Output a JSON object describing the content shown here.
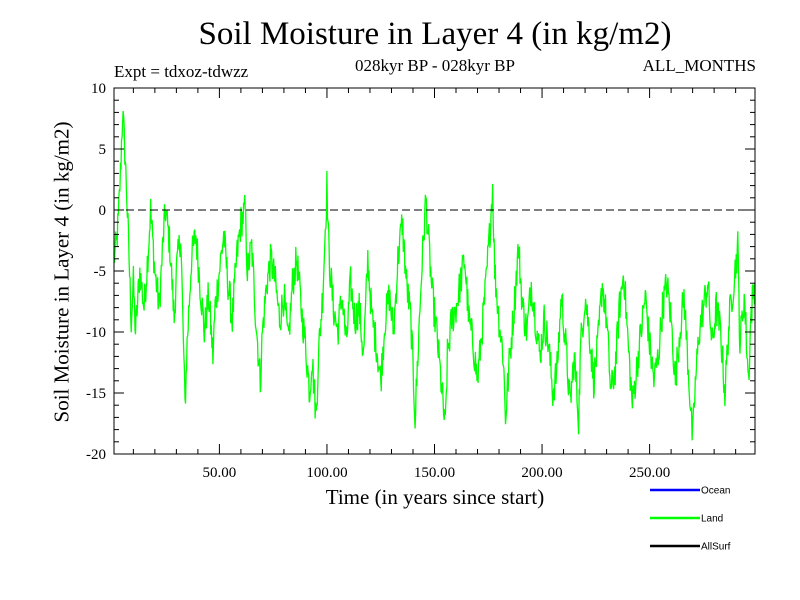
{
  "chart_data": {
    "type": "line",
    "title": "Soil Moisture in Layer 4 (in kg/m2)",
    "subtitle_left": "Expt = tdxoz-tdwzz",
    "subtitle_center": "028kyr BP - 028kyr BP",
    "subtitle_right": "ALL_MONTHS",
    "xlabel": "Time (in years since start)",
    "ylabel": "Soil Moisture in Layer 4 (in kg/m2)",
    "xlim": [
      1,
      299
    ],
    "ylim": [
      -20,
      10
    ],
    "x_ticks": [
      50,
      100,
      150,
      200,
      250
    ],
    "x_tick_labels": [
      "50.00",
      "100.00",
      "150.00",
      "200.00",
      "250.00"
    ],
    "y_ticks": [
      -20,
      -15,
      -10,
      -5,
      0,
      5,
      10
    ],
    "y_tick_labels": [
      "-20",
      "-15",
      "-10",
      "-5",
      "0",
      "5",
      "10"
    ],
    "reference_line": {
      "y": 0,
      "style": "dashed"
    },
    "legend": {
      "placement": "bottom-right",
      "entries": [
        {
          "name": "Ocean",
          "color": "#0000ff"
        },
        {
          "name": "Land",
          "color": "#00ff00"
        },
        {
          "name": "AllSurf",
          "color": "#000000"
        }
      ]
    },
    "series": [
      {
        "name": "Land",
        "color": "#00ff00",
        "x_start": 1,
        "x_step": 0.25,
        "keypoints": [
          [
            1,
            -4
          ],
          [
            2,
            -3
          ],
          [
            3,
            -1
          ],
          [
            4,
            3
          ],
          [
            5,
            8
          ],
          [
            6,
            5
          ],
          [
            7,
            1
          ],
          [
            8,
            -4
          ],
          [
            9,
            -9
          ],
          [
            10,
            -6
          ],
          [
            11,
            -10
          ],
          [
            13,
            -5
          ],
          [
            15,
            -8
          ],
          [
            17,
            -3
          ],
          [
            18,
            0
          ],
          [
            20,
            -5
          ],
          [
            22,
            -8
          ],
          [
            24,
            -2
          ],
          [
            25,
            0
          ],
          [
            27,
            -3
          ],
          [
            29,
            -9
          ],
          [
            30,
            -5
          ],
          [
            32,
            -2
          ],
          [
            34,
            -16
          ],
          [
            35,
            -11
          ],
          [
            37,
            -4
          ],
          [
            39,
            -2
          ],
          [
            41,
            -6
          ],
          [
            43,
            -10
          ],
          [
            45,
            -7
          ],
          [
            47,
            -12
          ],
          [
            48,
            -8
          ],
          [
            50,
            -5
          ],
          [
            52,
            -2
          ],
          [
            54,
            -6
          ],
          [
            56,
            -9
          ],
          [
            58,
            -4
          ],
          [
            60,
            -1
          ],
          [
            62,
            0
          ],
          [
            63,
            -5
          ],
          [
            65,
            -3
          ],
          [
            67,
            -9
          ],
          [
            69,
            -14
          ],
          [
            70,
            -10
          ],
          [
            72,
            -6
          ],
          [
            74,
            -4
          ],
          [
            76,
            -6
          ],
          [
            78,
            -9
          ],
          [
            80,
            -7
          ],
          [
            82,
            -11
          ],
          [
            84,
            -6
          ],
          [
            86,
            -4
          ],
          [
            88,
            -8
          ],
          [
            90,
            -11
          ],
          [
            92,
            -15
          ],
          [
            93,
            -12
          ],
          [
            95,
            -17
          ],
          [
            96,
            -12
          ],
          [
            98,
            -7
          ],
          [
            100,
            2
          ],
          [
            101,
            -4
          ],
          [
            103,
            -8
          ],
          [
            105,
            -10
          ],
          [
            107,
            -7
          ],
          [
            109,
            -11
          ],
          [
            111,
            -6
          ],
          [
            113,
            -9
          ],
          [
            115,
            -8
          ],
          [
            117,
            -12
          ],
          [
            119,
            -4
          ],
          [
            121,
            -9
          ],
          [
            123,
            -11
          ],
          [
            125,
            -14
          ],
          [
            127,
            -9
          ],
          [
            129,
            -7
          ],
          [
            131,
            -10
          ],
          [
            133,
            -4
          ],
          [
            135,
            -1
          ],
          [
            137,
            -6
          ],
          [
            139,
            -9
          ],
          [
            141,
            -17
          ],
          [
            142,
            -13
          ],
          [
            144,
            -5
          ],
          [
            146,
            1
          ],
          [
            147,
            -2
          ],
          [
            149,
            -7
          ],
          [
            151,
            -10
          ],
          [
            153,
            -14
          ],
          [
            155,
            -18
          ],
          [
            156,
            -12
          ],
          [
            158,
            -9
          ],
          [
            160,
            -8
          ],
          [
            162,
            -6
          ],
          [
            164,
            -4
          ],
          [
            166,
            -9
          ],
          [
            168,
            -11
          ],
          [
            170,
            -14
          ],
          [
            172,
            -10
          ],
          [
            174,
            -6
          ],
          [
            176,
            -1
          ],
          [
            177,
            2
          ],
          [
            178,
            -5
          ],
          [
            180,
            -9
          ],
          [
            182,
            -12
          ],
          [
            183,
            -17
          ],
          [
            185,
            -12
          ],
          [
            187,
            -8
          ],
          [
            189,
            -3
          ],
          [
            191,
            -8
          ],
          [
            193,
            -10
          ],
          [
            195,
            -6
          ],
          [
            197,
            -9
          ],
          [
            199,
            -12
          ],
          [
            201,
            -9
          ],
          [
            203,
            -11
          ],
          [
            205,
            -15
          ],
          [
            207,
            -13
          ],
          [
            209,
            -7
          ],
          [
            211,
            -11
          ],
          [
            213,
            -16
          ],
          [
            215,
            -12
          ],
          [
            217,
            -17
          ],
          [
            218,
            -11
          ],
          [
            220,
            -7
          ],
          [
            222,
            -10
          ],
          [
            224,
            -14
          ],
          [
            226,
            -11
          ],
          [
            228,
            -6
          ],
          [
            230,
            -9
          ],
          [
            232,
            -15
          ],
          [
            234,
            -13
          ],
          [
            236,
            -8
          ],
          [
            238,
            -5
          ],
          [
            240,
            -11
          ],
          [
            242,
            -16
          ],
          [
            244,
            -13
          ],
          [
            246,
            -10
          ],
          [
            248,
            -7
          ],
          [
            250,
            -11
          ],
          [
            252,
            -14
          ],
          [
            254,
            -12
          ],
          [
            256,
            -8
          ],
          [
            258,
            -6
          ],
          [
            260,
            -9
          ],
          [
            262,
            -14
          ],
          [
            264,
            -10
          ],
          [
            266,
            -7
          ],
          [
            268,
            -13
          ],
          [
            270,
            -19
          ],
          [
            271,
            -15
          ],
          [
            273,
            -10
          ],
          [
            275,
            -8
          ],
          [
            277,
            -6
          ],
          [
            279,
            -11
          ],
          [
            281,
            -8
          ],
          [
            283,
            -10
          ],
          [
            285,
            -15
          ],
          [
            287,
            -9
          ],
          [
            289,
            -6
          ],
          [
            291,
            -3
          ],
          [
            292,
            -11
          ],
          [
            294,
            -7
          ],
          [
            296,
            -14
          ],
          [
            297,
            -9
          ],
          [
            298,
            -7
          ],
          [
            299,
            -6
          ]
        ]
      }
    ]
  }
}
